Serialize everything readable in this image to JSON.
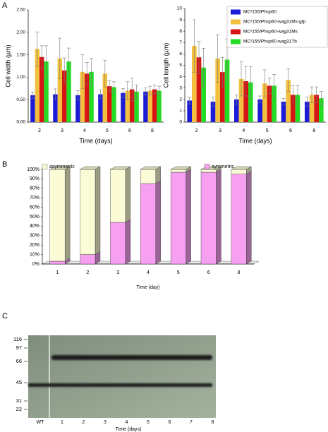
{
  "panel_labels": [
    "A",
    "B",
    "C"
  ],
  "chart_data": [
    {
      "type": "bar",
      "ylabel": "Cell width (µm)",
      "xlabel": "Time (days)",
      "categories": [
        "2",
        "3",
        "4",
        "5",
        "6",
        "8"
      ],
      "series": [
        {
          "color": "#1c1cd8",
          "values": [
            0.6,
            0.62,
            0.6,
            0.62,
            0.65,
            0.68
          ],
          "errors": [
            0.07,
            0.12,
            0.1,
            0.1,
            0.1,
            0.08
          ]
        },
        {
          "color": "#f3bf3e",
          "values": [
            1.63,
            1.42,
            1.12,
            1.08,
            0.7,
            0.7
          ],
          "errors": [
            0.38,
            0.45,
            0.38,
            0.3,
            0.2,
            0.1
          ]
        },
        {
          "color": "#d61515",
          "values": [
            1.45,
            1.15,
            1.08,
            0.8,
            0.73,
            0.73
          ],
          "errors": [
            0.25,
            0.28,
            0.25,
            0.12,
            0.25,
            0.1
          ]
        },
        {
          "color": "#25dc25",
          "values": [
            1.35,
            1.35,
            1.12,
            0.78,
            0.68,
            0.7
          ],
          "errors": [
            0.35,
            0.3,
            0.3,
            0.12,
            0.15,
            0.1
          ]
        }
      ],
      "ylim": [
        0,
        2.5
      ],
      "yticks": [
        {
          "value": 0,
          "label": "0.00"
        },
        {
          "value": 0.5,
          "label": "0.50"
        },
        {
          "value": 1,
          "label": "1.00"
        },
        {
          "value": 1.5,
          "label": "1.50"
        },
        {
          "value": 2,
          "label": "2.00"
        },
        {
          "value": 2.5,
          "label": "2.50"
        }
      ]
    },
    {
      "type": "bar",
      "ylabel": "Cell length (µm)",
      "xlabel": "Time (days)",
      "categories": [
        "2",
        "3",
        "4",
        "5",
        "6",
        "8"
      ],
      "series": [
        {
          "name": "MC²155/Phsp60",
          "color": "#1c1cd8",
          "values": [
            1.9,
            1.8,
            2.0,
            2.0,
            1.8,
            1.8
          ],
          "errors": [
            0.3,
            0.4,
            0.4,
            0.3,
            0.3,
            0.4
          ]
        },
        {
          "name": "MC²155/Phsp60-wag31Ms-gfp",
          "color": "#f3bf3e",
          "values": [
            6.7,
            5.6,
            3.8,
            3.4,
            3.7,
            2.4
          ],
          "errors": [
            2.3,
            2.1,
            1.5,
            1.2,
            1.0,
            0.7
          ]
        },
        {
          "name": "MC²155/Phsp60-wag31Ms",
          "color": "#d61515",
          "values": [
            5.7,
            4.4,
            3.6,
            3.2,
            2.4,
            2.4
          ],
          "errors": [
            1.4,
            1.3,
            1.3,
            0.7,
            0.8,
            0.7
          ]
        },
        {
          "name": "MC²155/Phsp60-wag31Tb",
          "color": "#25dc25",
          "values": [
            4.8,
            5.5,
            3.5,
            3.2,
            2.4,
            2.1
          ],
          "errors": [
            1.7,
            1.8,
            1.4,
            1.0,
            0.8,
            0.6
          ]
        }
      ],
      "ylim": [
        0,
        10
      ],
      "yticks": [
        0,
        1,
        2,
        3,
        4,
        5,
        6,
        7,
        8,
        9,
        10
      ],
      "legend": "upper right"
    },
    {
      "type": "stacked_bar",
      "xlabel": "Time (day)",
      "categories": [
        "1",
        "2",
        "3",
        "4",
        "5",
        "6",
        "8"
      ],
      "series": [
        {
          "name": "symmetric",
          "color": "#f7a0f2",
          "values": [
            3,
            10,
            44,
            85,
            97,
            97,
            95
          ]
        },
        {
          "name": "asymmetric",
          "color": "#fbfbd6",
          "values": [
            97,
            90,
            56,
            15,
            3,
            3,
            5
          ]
        }
      ],
      "ylim": [
        0,
        100
      ],
      "yticks": [
        {
          "value": 0,
          "label": "0%"
        },
        {
          "value": 10,
          "label": "10%"
        },
        {
          "value": 20,
          "label": "20%"
        },
        {
          "value": 30,
          "label": "30%"
        },
        {
          "value": 40,
          "label": "40%"
        },
        {
          "value": 50,
          "label": "50%"
        },
        {
          "value": 60,
          "label": "60%"
        },
        {
          "value": 70,
          "label": "70%"
        },
        {
          "value": 80,
          "label": "80%"
        },
        {
          "value": 90,
          "label": "90%"
        },
        {
          "value": 100,
          "label": "100%"
        }
      ]
    }
  ],
  "blot": {
    "markers": [
      "116",
      "97",
      "66",
      "45",
      "31",
      "22"
    ],
    "lanes": [
      "WT",
      "1",
      "2",
      "3",
      "4",
      "5",
      "6",
      "7",
      "8"
    ],
    "xlabel": "Time (days)"
  }
}
